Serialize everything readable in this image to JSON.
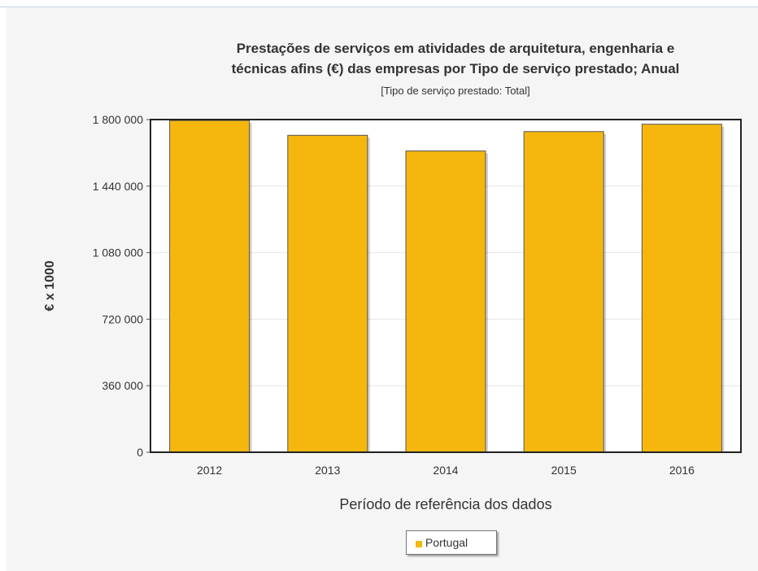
{
  "chart_data": {
    "type": "bar",
    "title_line1": "Prestações de serviços em atividades de arquitetura, engenharia e",
    "title_line2": "técnicas afins (€) das empresas por Tipo de serviço prestado; Anual",
    "subtitle": "[Tipo de serviço prestado: Total]",
    "xlabel": "Período de referência dos dados",
    "ylabel": "€ x 1000",
    "categories": [
      "2012",
      "2013",
      "2014",
      "2015",
      "2016"
    ],
    "series": [
      {
        "name": "Portugal",
        "values": [
          1795000,
          1715000,
          1630000,
          1735000,
          1775000
        ]
      }
    ],
    "ylim": [
      0,
      1800000
    ],
    "yticks": [
      0,
      360000,
      720000,
      1080000,
      1440000,
      1800000
    ],
    "ytick_labels": [
      "0",
      "360 000",
      "720 000",
      "1 080 000",
      "1 440 000",
      "1 800 000"
    ],
    "grid": true,
    "legend_position": "bottom-center",
    "bar_color": "#f5b70e"
  }
}
